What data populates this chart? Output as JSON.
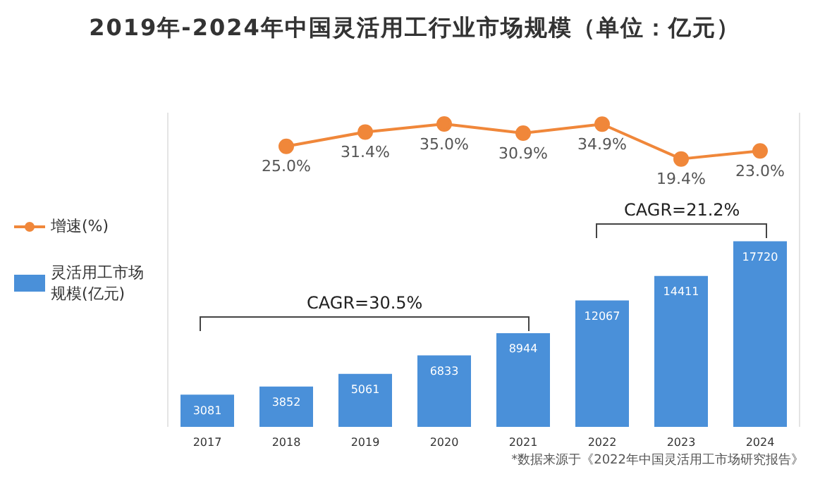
{
  "chart_data": {
    "type": "bar",
    "title": "2019年-2024年中国灵活用工行业市场规模（单位：亿元）",
    "categories": [
      "2017",
      "2018",
      "2019",
      "2020",
      "2021",
      "2022",
      "2023",
      "2024"
    ],
    "series": [
      {
        "name": "增速(%)",
        "type": "line",
        "axis": "y2",
        "color": "#f0873a",
        "values": [
          null,
          25.0,
          31.4,
          35.0,
          30.9,
          34.9,
          19.4,
          23.0
        ],
        "value_labels": [
          null,
          "25.0%",
          "31.4%",
          "35.0%",
          "30.9%",
          "34.9%",
          "19.4%",
          "23.0%"
        ]
      },
      {
        "name": "灵活用工市场规模(亿元)",
        "color": "#4a90d9",
        "values": [
          3081,
          3852,
          5061,
          6833,
          8944,
          12067,
          14411,
          17720
        ]
      }
    ],
    "data_labels": true,
    "ylim": [
      0,
      30000
    ],
    "y2lim": [
      -100,
      40
    ],
    "tick_labels": "x",
    "legend": "left",
    "marker": "circle",
    "annotations": [
      "CAGR=30.5%",
      "CAGR=21.2%",
      "*数据来源于《2022年中国灵活用工市场研究报告》"
    ]
  }
}
